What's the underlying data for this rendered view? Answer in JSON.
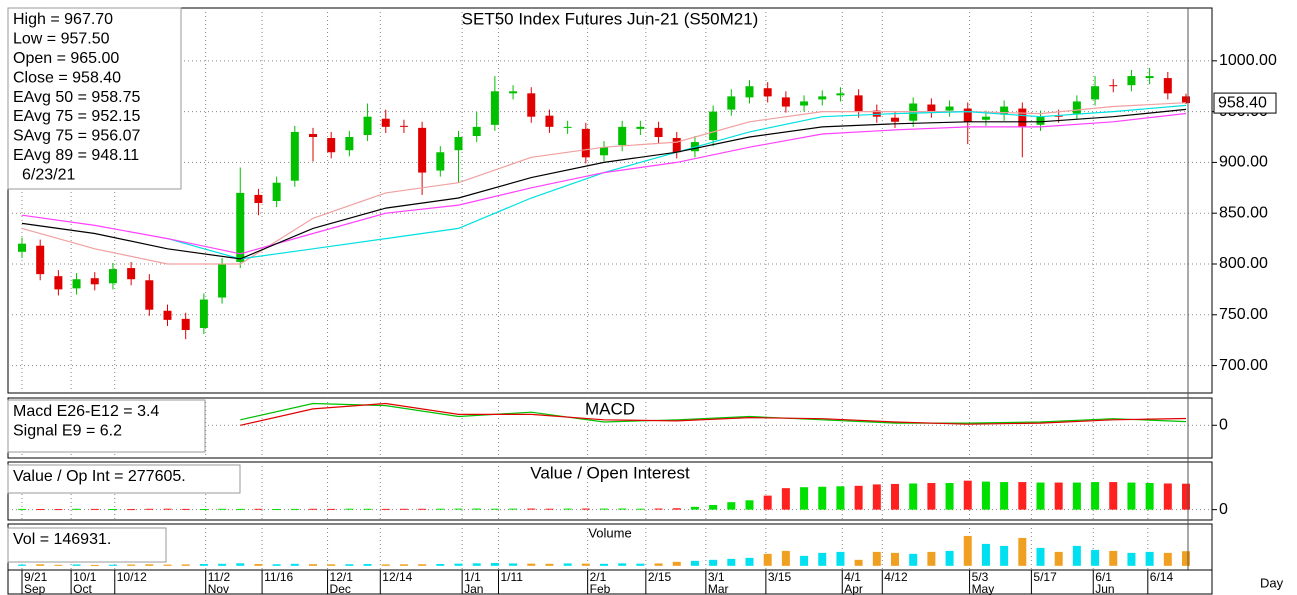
{
  "chart_data": [
    {
      "type": "candlestick",
      "title": "SET50 Index Futures Jun-21 (S50M21)",
      "legend": [
        "High   =  967.70",
        "Low    =  957.50",
        "Open   =  965.00",
        "Close  =  958.40",
        "EAvg  50  =  958.75",
        "EAvg  75  =  952.15",
        "SAvg  75  =  956.07",
        "EAvg  89  =  948.11"
      ],
      "legend_colors": [
        "#000000",
        "#000000",
        "#00dd00",
        "#ff2020",
        "#f0a0a0",
        "#000000",
        "#00e0e0",
        "#ff40ff"
      ],
      "date": "6/23/21",
      "last_label": "958.40",
      "x_axis_label": "Day",
      "xlim": [
        -0.66,
        64.22
      ],
      "ylim": [
        673,
        1052
      ],
      "yticks": [
        {
          "value": 700,
          "label": "700.00"
        },
        {
          "value": 750,
          "label": "750.00"
        },
        {
          "value": 800,
          "label": "800.00"
        },
        {
          "value": 850,
          "label": "850.00"
        },
        {
          "value": 900,
          "label": "900.00"
        },
        {
          "value": 950,
          "label": "950.00"
        },
        {
          "value": 1000,
          "label": "1000.00"
        }
      ],
      "xticks": [
        {
          "value": 0,
          "label": "9/21"
        },
        {
          "value": 2.7,
          "label": "10/1"
        },
        {
          "value": 5.1,
          "label": "10/12"
        },
        {
          "value": 10.1,
          "label": "11/2"
        },
        {
          "value": 13.2,
          "label": "11/16"
        },
        {
          "value": 16.8,
          "label": "12/1"
        },
        {
          "value": 19.7,
          "label": "12/14"
        },
        {
          "value": 24.2,
          "label": "1/1"
        },
        {
          "value": 26.2,
          "label": "1/11"
        },
        {
          "value": 31.1,
          "label": "2/1"
        },
        {
          "value": 34.3,
          "label": "2/15"
        },
        {
          "value": 37.6,
          "label": "3/1"
        },
        {
          "value": 40.9,
          "label": "3/15"
        },
        {
          "value": 45.1,
          "label": "4/1"
        },
        {
          "value": 47.3,
          "label": "4/12"
        },
        {
          "value": 52.1,
          "label": "5/3"
        },
        {
          "value": 55.5,
          "label": "5/17"
        },
        {
          "value": 58.9,
          "label": "6/1"
        },
        {
          "value": 61.9,
          "label": "6/14"
        }
      ],
      "months": [
        {
          "value": 0,
          "label": "Sep"
        },
        {
          "value": 2.7,
          "label": "Oct"
        },
        {
          "value": 10.1,
          "label": "Nov"
        },
        {
          "value": 16.8,
          "label": "Dec"
        },
        {
          "value": 24.2,
          "label": "Jan"
        },
        {
          "value": 31.1,
          "label": "Feb"
        },
        {
          "value": 37.6,
          "label": "Mar"
        },
        {
          "value": 45.1,
          "label": "Apr"
        },
        {
          "value": 52.1,
          "label": "May"
        },
        {
          "value": 58.9,
          "label": "Jun"
        }
      ],
      "up_color": "#00c000",
      "down_color": "#e00000",
      "open": [
        812,
        818,
        788,
        776,
        786,
        781,
        796,
        784,
        754,
        746,
        737,
        767,
        802,
        868,
        862,
        882,
        928,
        924,
        912,
        927,
        943,
        936,
        934,
        892,
        912,
        926,
        937,
        968,
        968,
        946,
        934,
        933,
        907,
        917,
        933,
        934,
        924,
        911,
        922,
        952,
        964,
        973,
        964,
        956,
        962,
        966,
        966,
        951,
        944,
        941,
        957,
        951,
        953,
        942,
        947,
        953,
        937,
        946,
        948,
        962,
        976,
        976,
        983,
        983,
        965
      ],
      "high": [
        826,
        824,
        794,
        791,
        792,
        801,
        802,
        790,
        760,
        752,
        771,
        806,
        895,
        874,
        886,
        936,
        934,
        930,
        931,
        958,
        952,
        942,
        940,
        916,
        931,
        950,
        985,
        976,
        974,
        952,
        941,
        939,
        921,
        941,
        941,
        940,
        930,
        926,
        956,
        972,
        981,
        979,
        970,
        966,
        971,
        974,
        972,
        957,
        950,
        964,
        963,
        961,
        959,
        951,
        961,
        959,
        951,
        952,
        966,
        985,
        982,
        991,
        993,
        989,
        967.7
      ],
      "low": [
        806,
        784,
        769,
        770,
        774,
        775,
        779,
        749,
        739,
        726,
        731,
        761,
        796,
        848,
        856,
        876,
        901,
        904,
        906,
        921,
        929,
        929,
        868,
        886,
        880,
        920,
        931,
        962,
        939,
        929,
        928,
        899,
        901,
        911,
        927,
        919,
        904,
        905,
        916,
        946,
        958,
        959,
        949,
        950,
        956,
        960,
        944,
        939,
        934,
        935,
        944,
        945,
        918,
        936,
        941,
        905,
        931,
        939,
        942,
        956,
        969,
        970,
        977,
        962,
        957.5
      ],
      "close": [
        820,
        790,
        775,
        785,
        780,
        795,
        785,
        755,
        745,
        735,
        765,
        800,
        870,
        860,
        880,
        930,
        925,
        910,
        925,
        945,
        935,
        935,
        890,
        910,
        925,
        935,
        970,
        970,
        945,
        935,
        935,
        905,
        915,
        935,
        935,
        925,
        910,
        920,
        950,
        965,
        975,
        965,
        955,
        960,
        965,
        968,
        950,
        945,
        940,
        958,
        950,
        955,
        940,
        945,
        955,
        935,
        945,
        945,
        960,
        975,
        975,
        985,
        985,
        968,
        958.4
      ],
      "series": [
        {
          "name": "EAvg 50",
          "color": "#f0a0a0",
          "x": [
            0,
            4,
            8,
            12,
            16,
            20,
            24,
            28,
            32,
            36,
            40,
            44,
            48,
            52,
            56,
            60,
            64
          ],
          "values": [
            835,
            815,
            800,
            800,
            845,
            870,
            880,
            905,
            915,
            920,
            940,
            950,
            950,
            950,
            948,
            955,
            958.75
          ]
        },
        {
          "name": "SAvg 75",
          "color": "#00e0e0",
          "x": [
            0,
            4,
            8,
            12,
            16,
            20,
            24,
            28,
            32,
            36,
            40,
            44,
            48,
            52,
            56,
            60,
            64
          ],
          "values": [
            null,
            null,
            825,
            805,
            815,
            825,
            835,
            865,
            890,
            910,
            930,
            945,
            948,
            950,
            945,
            950,
            956.07
          ]
        },
        {
          "name": "EAvg 89",
          "color": "#ff40ff",
          "x": [
            0,
            4,
            8,
            12,
            16,
            20,
            24,
            28,
            32,
            36,
            40,
            44,
            48,
            52,
            56,
            60,
            64
          ],
          "values": [
            848,
            838,
            825,
            810,
            830,
            850,
            858,
            875,
            890,
            900,
            915,
            928,
            932,
            935,
            935,
            940,
            948.11
          ]
        },
        {
          "name": "EAvg 75",
          "color": "#000000",
          "x": [
            0,
            4,
            8,
            12,
            16,
            20,
            24,
            28,
            32,
            36,
            40,
            44,
            48,
            52,
            56,
            60,
            64
          ],
          "values": [
            840,
            830,
            815,
            805,
            835,
            855,
            865,
            885,
            900,
            910,
            925,
            935,
            938,
            940,
            940,
            945,
            952.15
          ]
        }
      ]
    },
    {
      "type": "line",
      "title": "MACD",
      "legend": [
        "Macd  E26-E12  =  3.4",
        "Signal  E9  =  6.2"
      ],
      "legend_colors": [
        "#00dd00",
        "#ff2020"
      ],
      "ylim": [
        -30,
        25
      ],
      "yticks": [
        0
      ],
      "series": [
        {
          "name": "Macd",
          "color": "#00c000",
          "x": [
            0,
            4,
            8,
            12,
            16,
            20,
            24,
            28,
            32,
            36,
            40,
            44,
            48,
            52,
            56,
            60,
            64
          ],
          "values": [
            null,
            null,
            null,
            5,
            20,
            18,
            8,
            12,
            3,
            5,
            8,
            5,
            2,
            2,
            3,
            6,
            3.4
          ]
        },
        {
          "name": "Signal",
          "color": "#e00000",
          "x": [
            0,
            4,
            8,
            12,
            16,
            20,
            24,
            28,
            32,
            36,
            40,
            44,
            48,
            52,
            56,
            60,
            64
          ],
          "values": [
            null,
            null,
            null,
            0,
            15,
            20,
            10,
            10,
            5,
            4,
            7,
            6,
            3,
            1,
            2,
            5,
            6.2
          ]
        }
      ]
    },
    {
      "type": "bar",
      "title": "Value  /  Open  Interest",
      "legend": [
        "Value  /  Op  Int  =  277605."
      ],
      "legend_colors": [
        "#ff2020"
      ],
      "ylim": [
        -111000,
        510000
      ],
      "yticks": [
        0
      ],
      "up_color": "#00e000",
      "down_color": "#ff2020",
      "values": [
        8000,
        7000,
        6000,
        9000,
        8000,
        7000,
        6000,
        9000,
        10000,
        8000,
        7000,
        9000,
        8000,
        9000,
        7000,
        8000,
        9000,
        8000,
        10000,
        9000,
        8000,
        9000,
        9000,
        10000,
        11000,
        12000,
        10000,
        11000,
        12000,
        10000,
        11000,
        12000,
        11000,
        12000,
        10000,
        12000,
        15000,
        30000,
        50000,
        80000,
        100000,
        150000,
        230000,
        240000,
        245000,
        250000,
        255000,
        270000,
        275000,
        280000,
        285000,
        285000,
        310000,
        300000,
        295000,
        295000,
        290000,
        290000,
        290000,
        295000,
        295000,
        290000,
        285000,
        280000,
        277605
      ]
    },
    {
      "type": "bar",
      "title": "Volume",
      "legend": [
        "Vol     =  146931."
      ],
      "legend_colors": [
        "#00e0e0"
      ],
      "ylim": [
        -42000,
        420000
      ],
      "up_color": "#00e0f0",
      "down_color": "#f0a020",
      "values": [
        12000,
        15000,
        10000,
        14000,
        9000,
        11000,
        13000,
        15000,
        12000,
        14000,
        18000,
        20000,
        25000,
        18000,
        16000,
        20000,
        17000,
        15000,
        16000,
        18000,
        14000,
        15000,
        16000,
        18000,
        22000,
        25000,
        28000,
        24000,
        22000,
        20000,
        24000,
        22000,
        20000,
        25000,
        22000,
        24000,
        40000,
        50000,
        60000,
        70000,
        80000,
        120000,
        150000,
        100000,
        130000,
        140000,
        60000,
        140000,
        130000,
        120000,
        140000,
        150000,
        300000,
        220000,
        200000,
        280000,
        180000,
        140000,
        200000,
        160000,
        150000,
        130000,
        140000,
        130000,
        146931
      ]
    }
  ]
}
